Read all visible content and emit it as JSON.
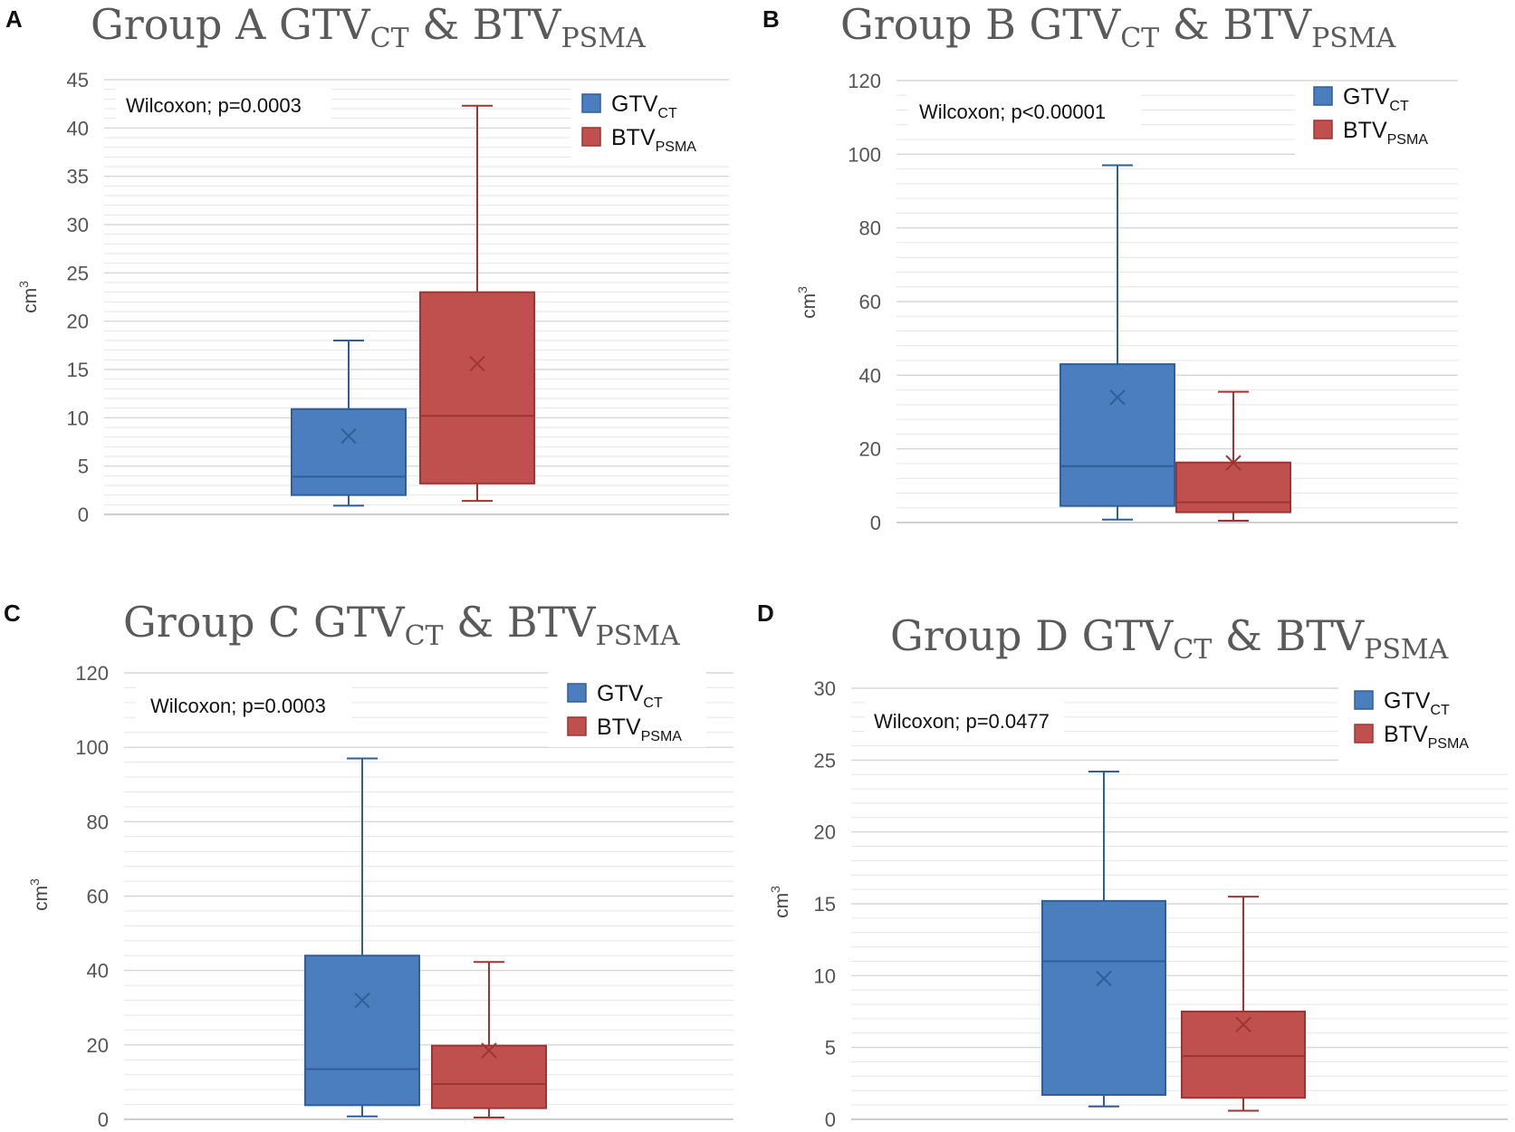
{
  "colors": {
    "gtv": "#4a7ebf",
    "gtv_edge": "#2f5e9a",
    "btv": "#c0504d",
    "btv_edge": "#9e3532",
    "grid": "#d6d6d6"
  },
  "legend": {
    "gtv_main": "GTV",
    "gtv_sub": "CT",
    "btv_main": "BTV",
    "btv_sub": "PSMA"
  },
  "panels": [
    {
      "id": "A",
      "letter": "A",
      "title_main": "Group A GTV",
      "title_sub1": "CT",
      "title_mid": " & BTV",
      "title_sub2": "PSMA",
      "ylabel": "cm3",
      "stat_text": "Wilcoxon; p=0.0003"
    },
    {
      "id": "B",
      "letter": "B",
      "title_main": "Group B GTV",
      "title_sub1": "CT",
      "title_mid": " & BTV",
      "title_sub2": "PSMA",
      "ylabel": "cm3",
      "stat_text": "Wilcoxon; p<0.00001"
    },
    {
      "id": "C",
      "letter": "C",
      "title_main": "Group C GTV",
      "title_sub1": "CT",
      "title_mid": " & BTV",
      "title_sub2": "PSMA",
      "ylabel": "cm3",
      "stat_text": "Wilcoxon; p=0.0003"
    },
    {
      "id": "D",
      "letter": "D",
      "title_main": "Group D GTV",
      "title_sub1": "CT",
      "title_mid": " & BTV",
      "title_sub2": "PSMA",
      "ylabel": "cm3",
      "stat_text": "Wilcoxon; p=0.0477"
    }
  ],
  "chart_data": [
    {
      "type": "box",
      "title": "Group A GTV CT & BTV PSMA",
      "ylabel": "cm3",
      "ylim": [
        0,
        45
      ],
      "yticks": [
        0,
        5,
        10,
        15,
        20,
        25,
        30,
        35,
        40,
        45
      ],
      "series": [
        {
          "name": "GTV CT",
          "min": 0.9,
          "q1": 2.0,
          "median": 3.9,
          "q3": 10.9,
          "max": 18.0,
          "mean": 8.1
        },
        {
          "name": "BTV PSMA",
          "min": 1.4,
          "q1": 3.2,
          "median": 10.2,
          "q3": 23.0,
          "max": 42.3,
          "mean": 15.6
        }
      ]
    },
    {
      "type": "box",
      "title": "Group B GTV CT & BTV PSMA",
      "ylabel": "cm3",
      "ylim": [
        0,
        120
      ],
      "yticks": [
        0,
        20,
        40,
        60,
        80,
        100,
        120
      ],
      "series": [
        {
          "name": "GTV CT",
          "min": 0.8,
          "q1": 4.5,
          "median": 15.3,
          "q3": 43.0,
          "max": 97.0,
          "mean": 34.0
        },
        {
          "name": "BTV PSMA",
          "min": 0.5,
          "q1": 2.8,
          "median": 5.5,
          "q3": 16.3,
          "max": 35.5,
          "mean": 16.2
        }
      ]
    },
    {
      "type": "box",
      "title": "Group C GTV CT & BTV PSMA",
      "ylabel": "cm3",
      "ylim": [
        0,
        120
      ],
      "yticks": [
        0,
        20,
        40,
        60,
        80,
        100,
        120
      ],
      "series": [
        {
          "name": "GTV CT",
          "min": 0.8,
          "q1": 3.8,
          "median": 13.5,
          "q3": 44.0,
          "max": 97.0,
          "mean": 32.0
        },
        {
          "name": "BTV PSMA",
          "min": 0.5,
          "q1": 3.0,
          "median": 9.5,
          "q3": 19.8,
          "max": 42.3,
          "mean": 18.5
        }
      ]
    },
    {
      "type": "box",
      "title": "Group D GTV CT & BTV PSMA",
      "ylabel": "cm3",
      "ylim": [
        0,
        30
      ],
      "yticks": [
        0,
        5,
        10,
        15,
        20,
        25,
        30
      ],
      "series": [
        {
          "name": "GTV CT",
          "min": 0.9,
          "q1": 1.7,
          "median": 11.0,
          "q3": 15.2,
          "max": 24.2,
          "mean": 9.8
        },
        {
          "name": "BTV PSMA",
          "min": 0.6,
          "q1": 1.5,
          "median": 4.4,
          "q3": 7.5,
          "max": 15.5,
          "mean": 6.6
        }
      ]
    }
  ]
}
